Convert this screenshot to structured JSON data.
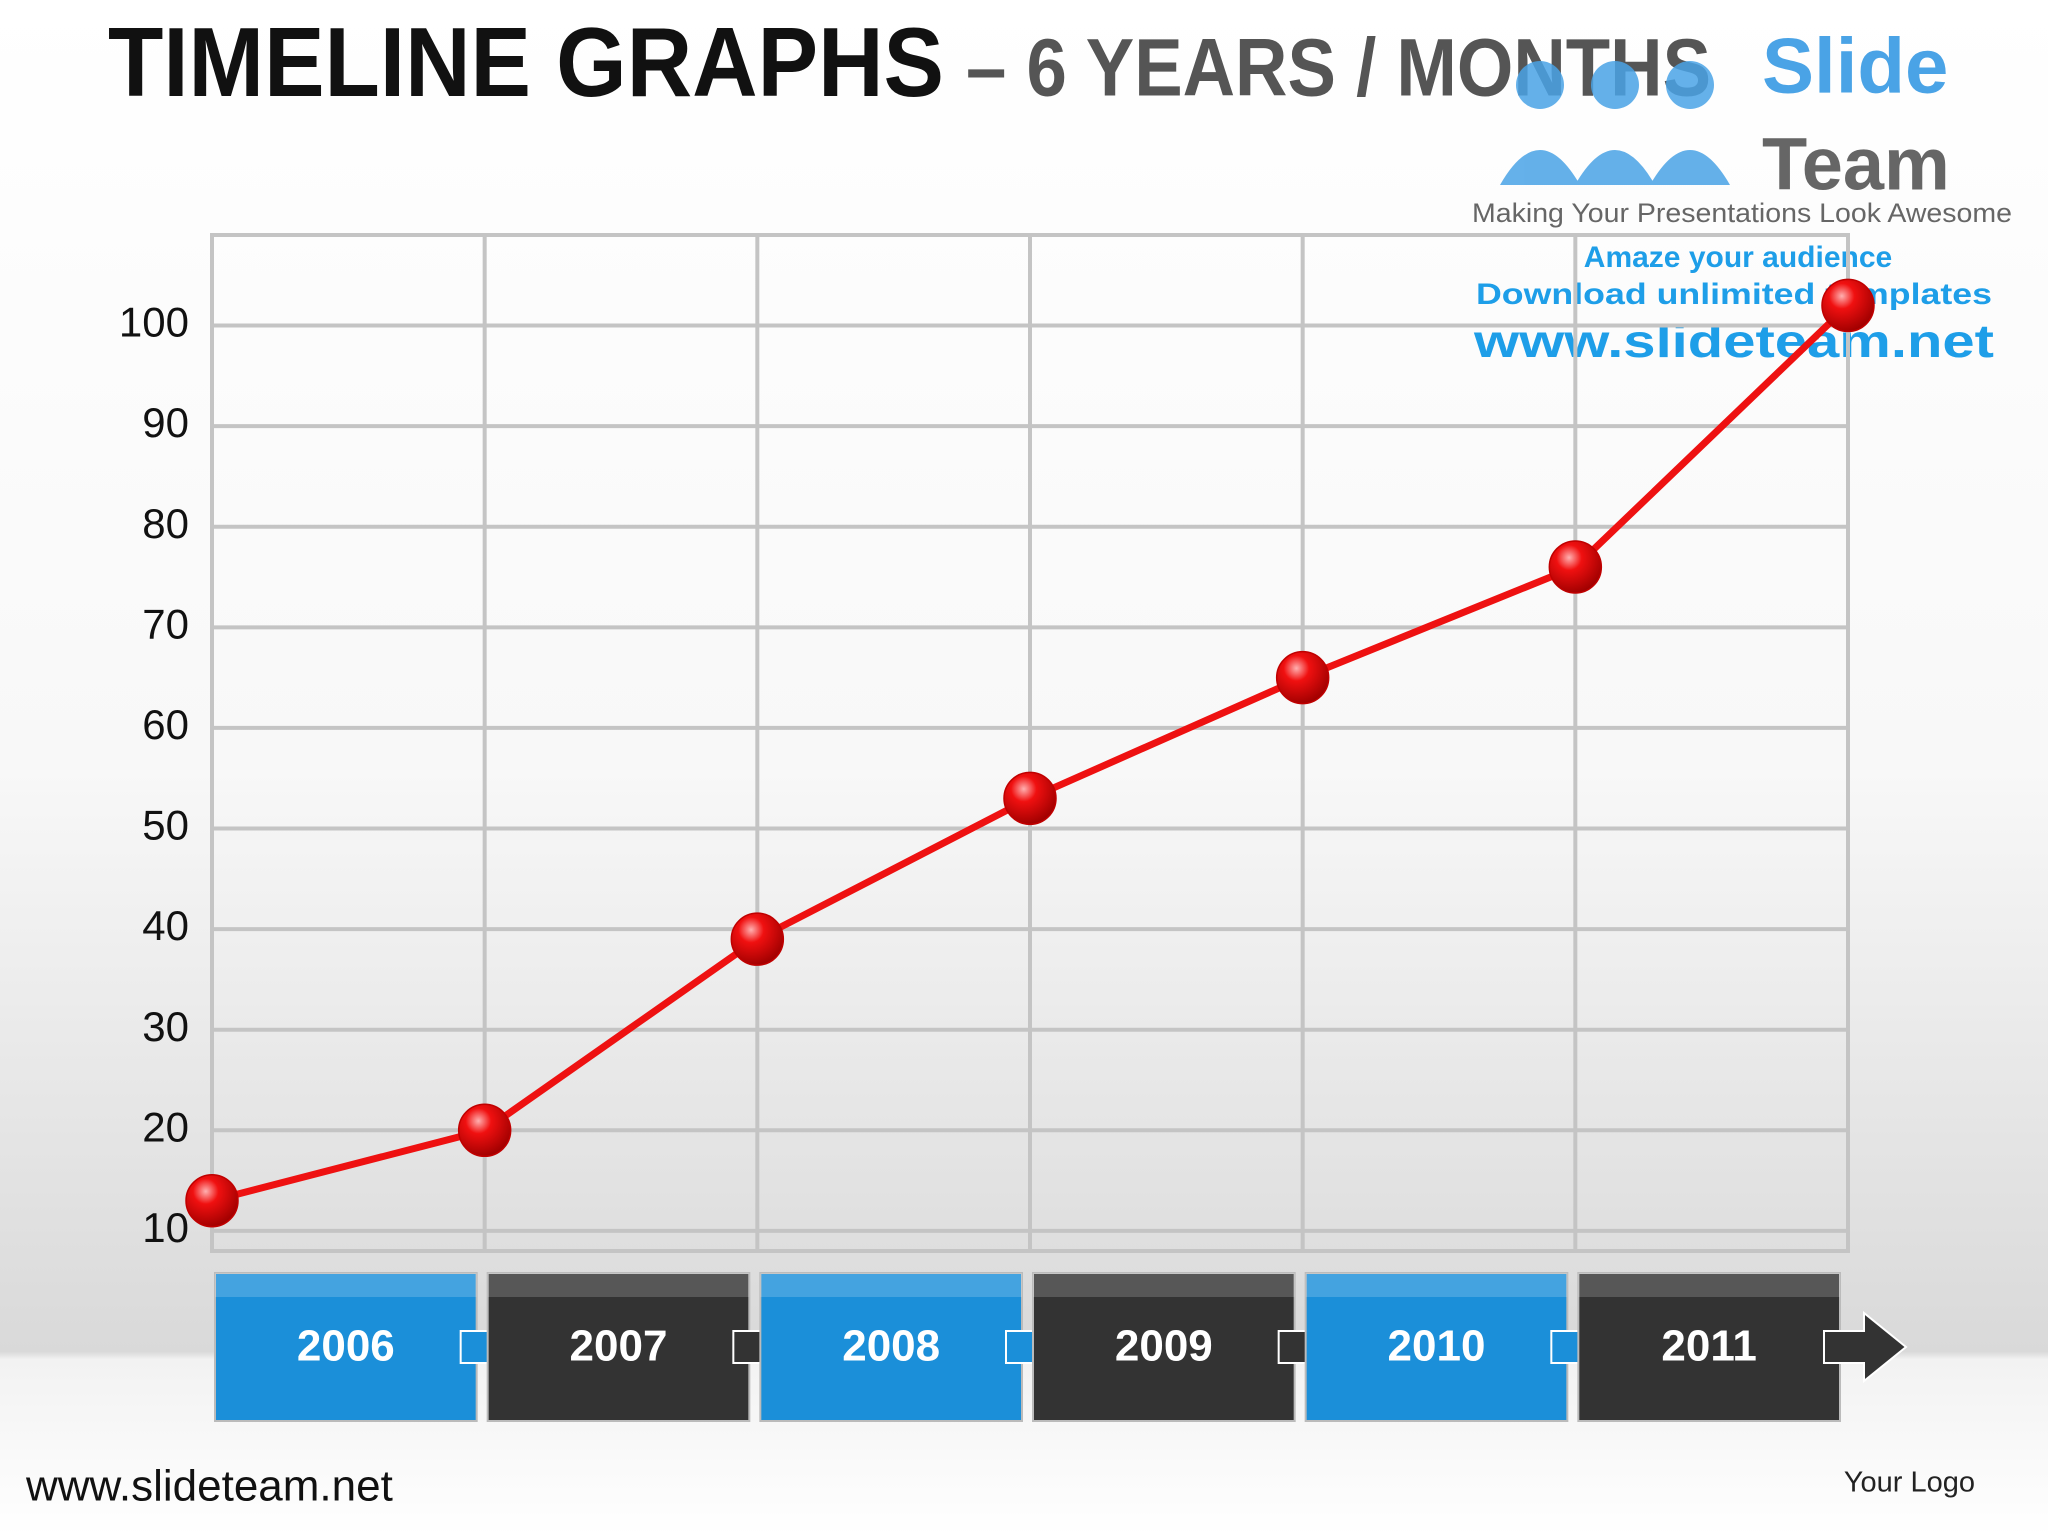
{
  "chart_data": {
    "type": "line",
    "title": "TIMELINE  GRAPHS",
    "subtitle": "– 6 YEARS / MONTHS",
    "categories": [
      "2006",
      "2007",
      "2008",
      "2009",
      "2010",
      "2011",
      null
    ],
    "values": [
      13,
      20,
      39,
      53,
      65,
      76,
      102
    ],
    "color": "#ee1111",
    "band_colors": [
      "#1b8fd9",
      "#333333"
    ],
    "ylim": [
      8,
      109
    ],
    "yticks": [
      10,
      20,
      30,
      40,
      50,
      60,
      70,
      80,
      90,
      100
    ],
    "grid": true
  },
  "watermark": {
    "brand_1": "Slide",
    "brand_2": "Team",
    "tagline": "Making Your Presentations Look Awesome",
    "line_1": "Amaze your audience",
    "line_2": "Download unlimited templates",
    "url": "www.slideteam.net"
  },
  "footer": {
    "website": "www.slideteam.net",
    "logo": "Your Logo"
  }
}
